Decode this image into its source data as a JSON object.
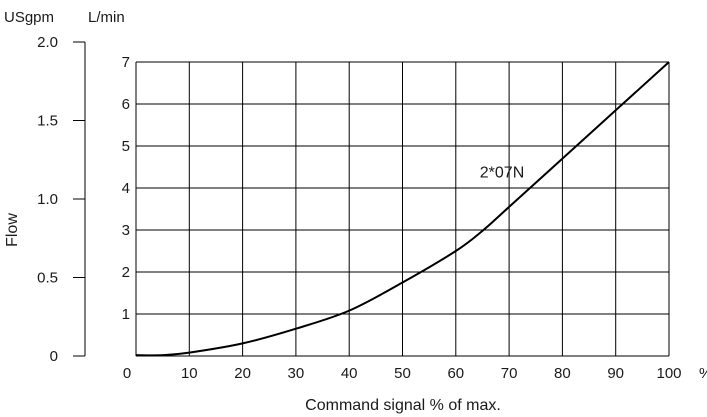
{
  "chart_data": {
    "type": "line",
    "xlabel": "Command signal % of max.",
    "x_unit": "%",
    "ylabel": "Flow",
    "left_axis_unit": "USgpm",
    "right_axis_unit": "L/min",
    "xlim": [
      0,
      100
    ],
    "ylim_lmin": [
      0,
      7
    ],
    "ylim_usgpm": [
      0,
      2.0
    ],
    "x_ticks": [
      "0",
      "10",
      "20",
      "30",
      "40",
      "50",
      "60",
      "70",
      "80",
      "90",
      "100"
    ],
    "lmin_ticks": [
      "1",
      "2",
      "3",
      "4",
      "5",
      "6",
      "7"
    ],
    "usgpm_ticks": [
      "0",
      "0.5",
      "1.0",
      "1.5",
      "2.0"
    ],
    "grid": true,
    "series": [
      {
        "name": "2*07N",
        "color": "#000000",
        "x": [
          0,
          5,
          10,
          20,
          30,
          40,
          50,
          60,
          65,
          70,
          80,
          90,
          100
        ],
        "y": [
          0.02,
          0.02,
          0.08,
          0.3,
          0.65,
          1.08,
          1.75,
          2.5,
          2.98,
          3.55,
          4.7,
          5.85,
          7.0
        ]
      }
    ]
  }
}
